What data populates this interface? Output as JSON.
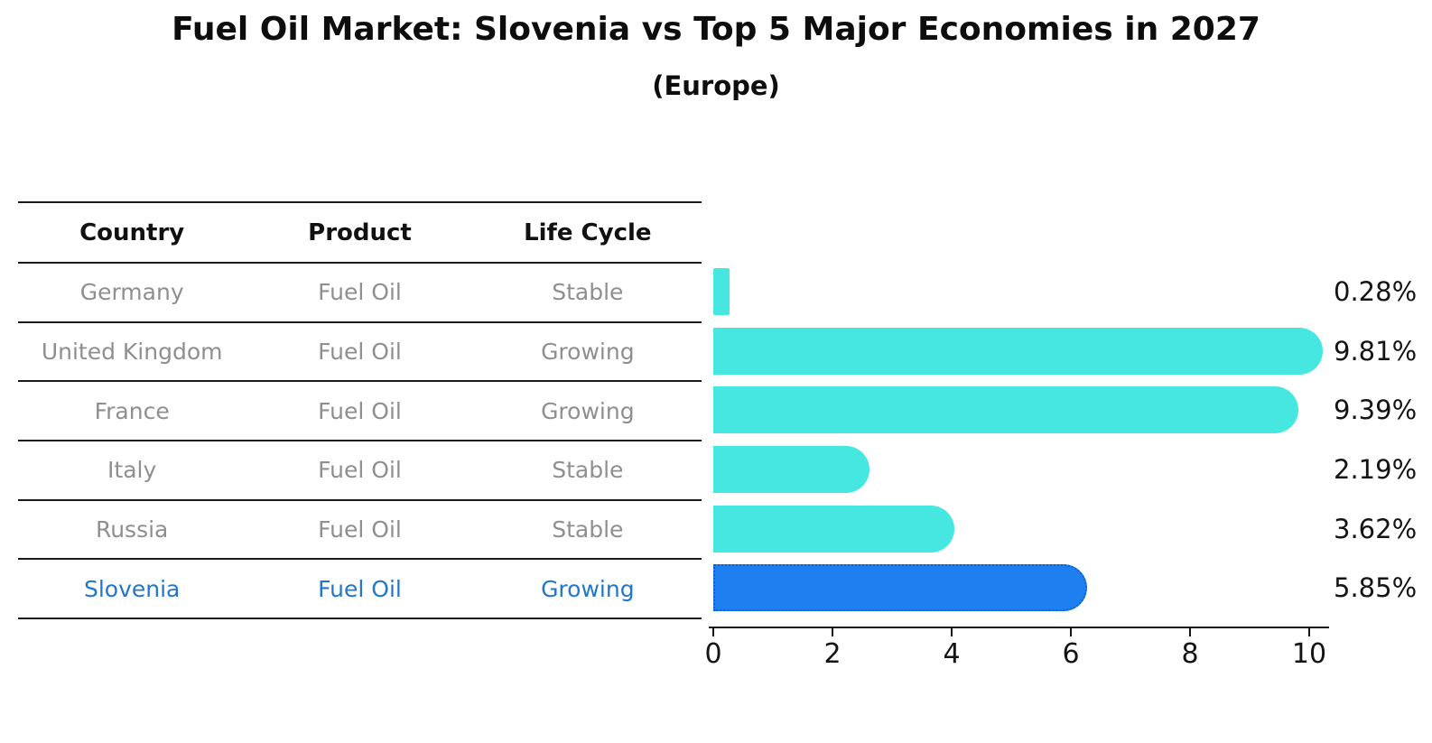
{
  "title": "Fuel Oil Market: Slovenia vs Top 5 Major Economies in 2027",
  "subtitle": "(Europe)",
  "table": {
    "headers": [
      "Country",
      "Product",
      "Life Cycle"
    ]
  },
  "chart_data": {
    "type": "bar",
    "orientation": "horizontal",
    "title": "Fuel Oil Market: Slovenia vs Top 5 Major Economies in 2027",
    "subtitle": "(Europe)",
    "categories": [
      "Germany",
      "United Kingdom",
      "France",
      "Italy",
      "Russia",
      "Slovenia"
    ],
    "values": [
      0.28,
      9.81,
      9.39,
      2.19,
      3.62,
      5.85
    ],
    "value_labels": [
      "0.28%",
      "9.81%",
      "9.39%",
      "2.19%",
      "3.62%",
      "5.85%"
    ],
    "rows": [
      {
        "country": "Germany",
        "product": "Fuel Oil",
        "life_cycle": "Stable",
        "value": 0.28,
        "label": "0.28%",
        "highlight": false
      },
      {
        "country": "United Kingdom",
        "product": "Fuel Oil",
        "life_cycle": "Growing",
        "value": 9.81,
        "label": "9.81%",
        "highlight": false
      },
      {
        "country": "France",
        "product": "Fuel Oil",
        "life_cycle": "Growing",
        "value": 9.39,
        "label": "9.39%",
        "highlight": false
      },
      {
        "country": "Italy",
        "product": "Fuel Oil",
        "life_cycle": "Stable",
        "value": 2.19,
        "label": "2.19%",
        "highlight": false
      },
      {
        "country": "Russia",
        "product": "Fuel Oil",
        "life_cycle": "Stable",
        "value": 3.62,
        "label": "3.62%",
        "highlight": false
      },
      {
        "country": "Slovenia",
        "product": "Fuel Oil",
        "life_cycle": "Growing",
        "value": 5.85,
        "label": "5.85%",
        "highlight": true
      }
    ],
    "xlim": [
      0,
      10
    ],
    "xticks": [
      "0",
      "2",
      "4",
      "6",
      "8",
      "10"
    ],
    "grid": false,
    "legend": "none",
    "colors": {
      "bar": "#46E7E1",
      "highlight_bar": "#1E80F0",
      "highlight_border": "#0E5FD0",
      "row_text": "#8f8f8f",
      "highlight_text": "#2277cc",
      "axis": "#141414",
      "header_text": "#111111"
    }
  }
}
